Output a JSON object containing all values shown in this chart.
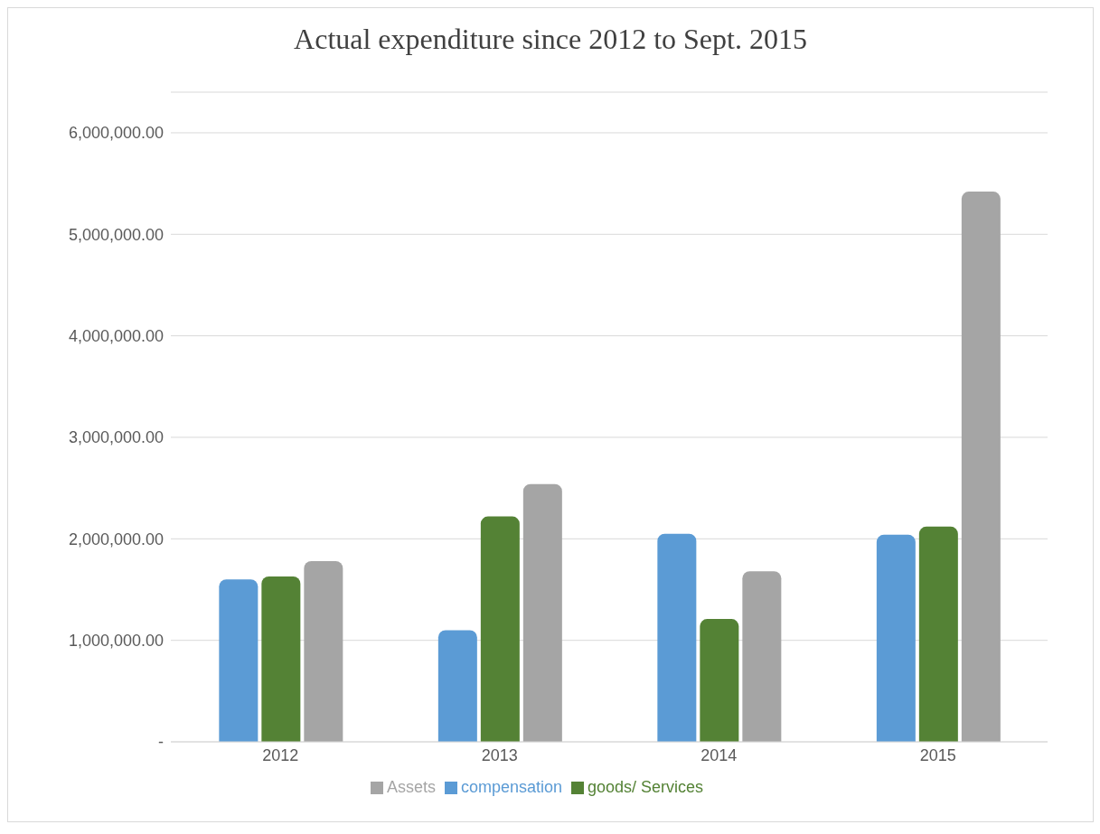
{
  "chart_data": {
    "type": "bar",
    "title": "Actual expenditure since 2012 to Sept. 2015",
    "categories": [
      "2012",
      "2013",
      "2014",
      "2015"
    ],
    "series": [
      {
        "name": "compensation",
        "color": "#5b9bd5",
        "values": [
          1600000,
          1100000,
          2050000,
          2040000
        ]
      },
      {
        "name": "goods/ Services",
        "color": "#548235",
        "values": [
          1630000,
          2220000,
          1210000,
          2120000
        ]
      },
      {
        "name": "Assets",
        "color": "#a5a5a5",
        "values": [
          1780000,
          2540000,
          1680000,
          5420000
        ]
      }
    ],
    "ylim": [
      0,
      6400000
    ],
    "yticks": [
      {
        "value": 0,
        "label": "-"
      },
      {
        "value": 1000000,
        "label": "1,000,000.00"
      },
      {
        "value": 2000000,
        "label": "2,000,000.00"
      },
      {
        "value": 3000000,
        "label": "3,000,000.00"
      },
      {
        "value": 4000000,
        "label": "4,000,000.00"
      },
      {
        "value": 5000000,
        "label": "5,000,000.00"
      },
      {
        "value": 6000000,
        "label": "6,000,000.00"
      }
    ],
    "grid": "y",
    "legend": "bottom"
  }
}
